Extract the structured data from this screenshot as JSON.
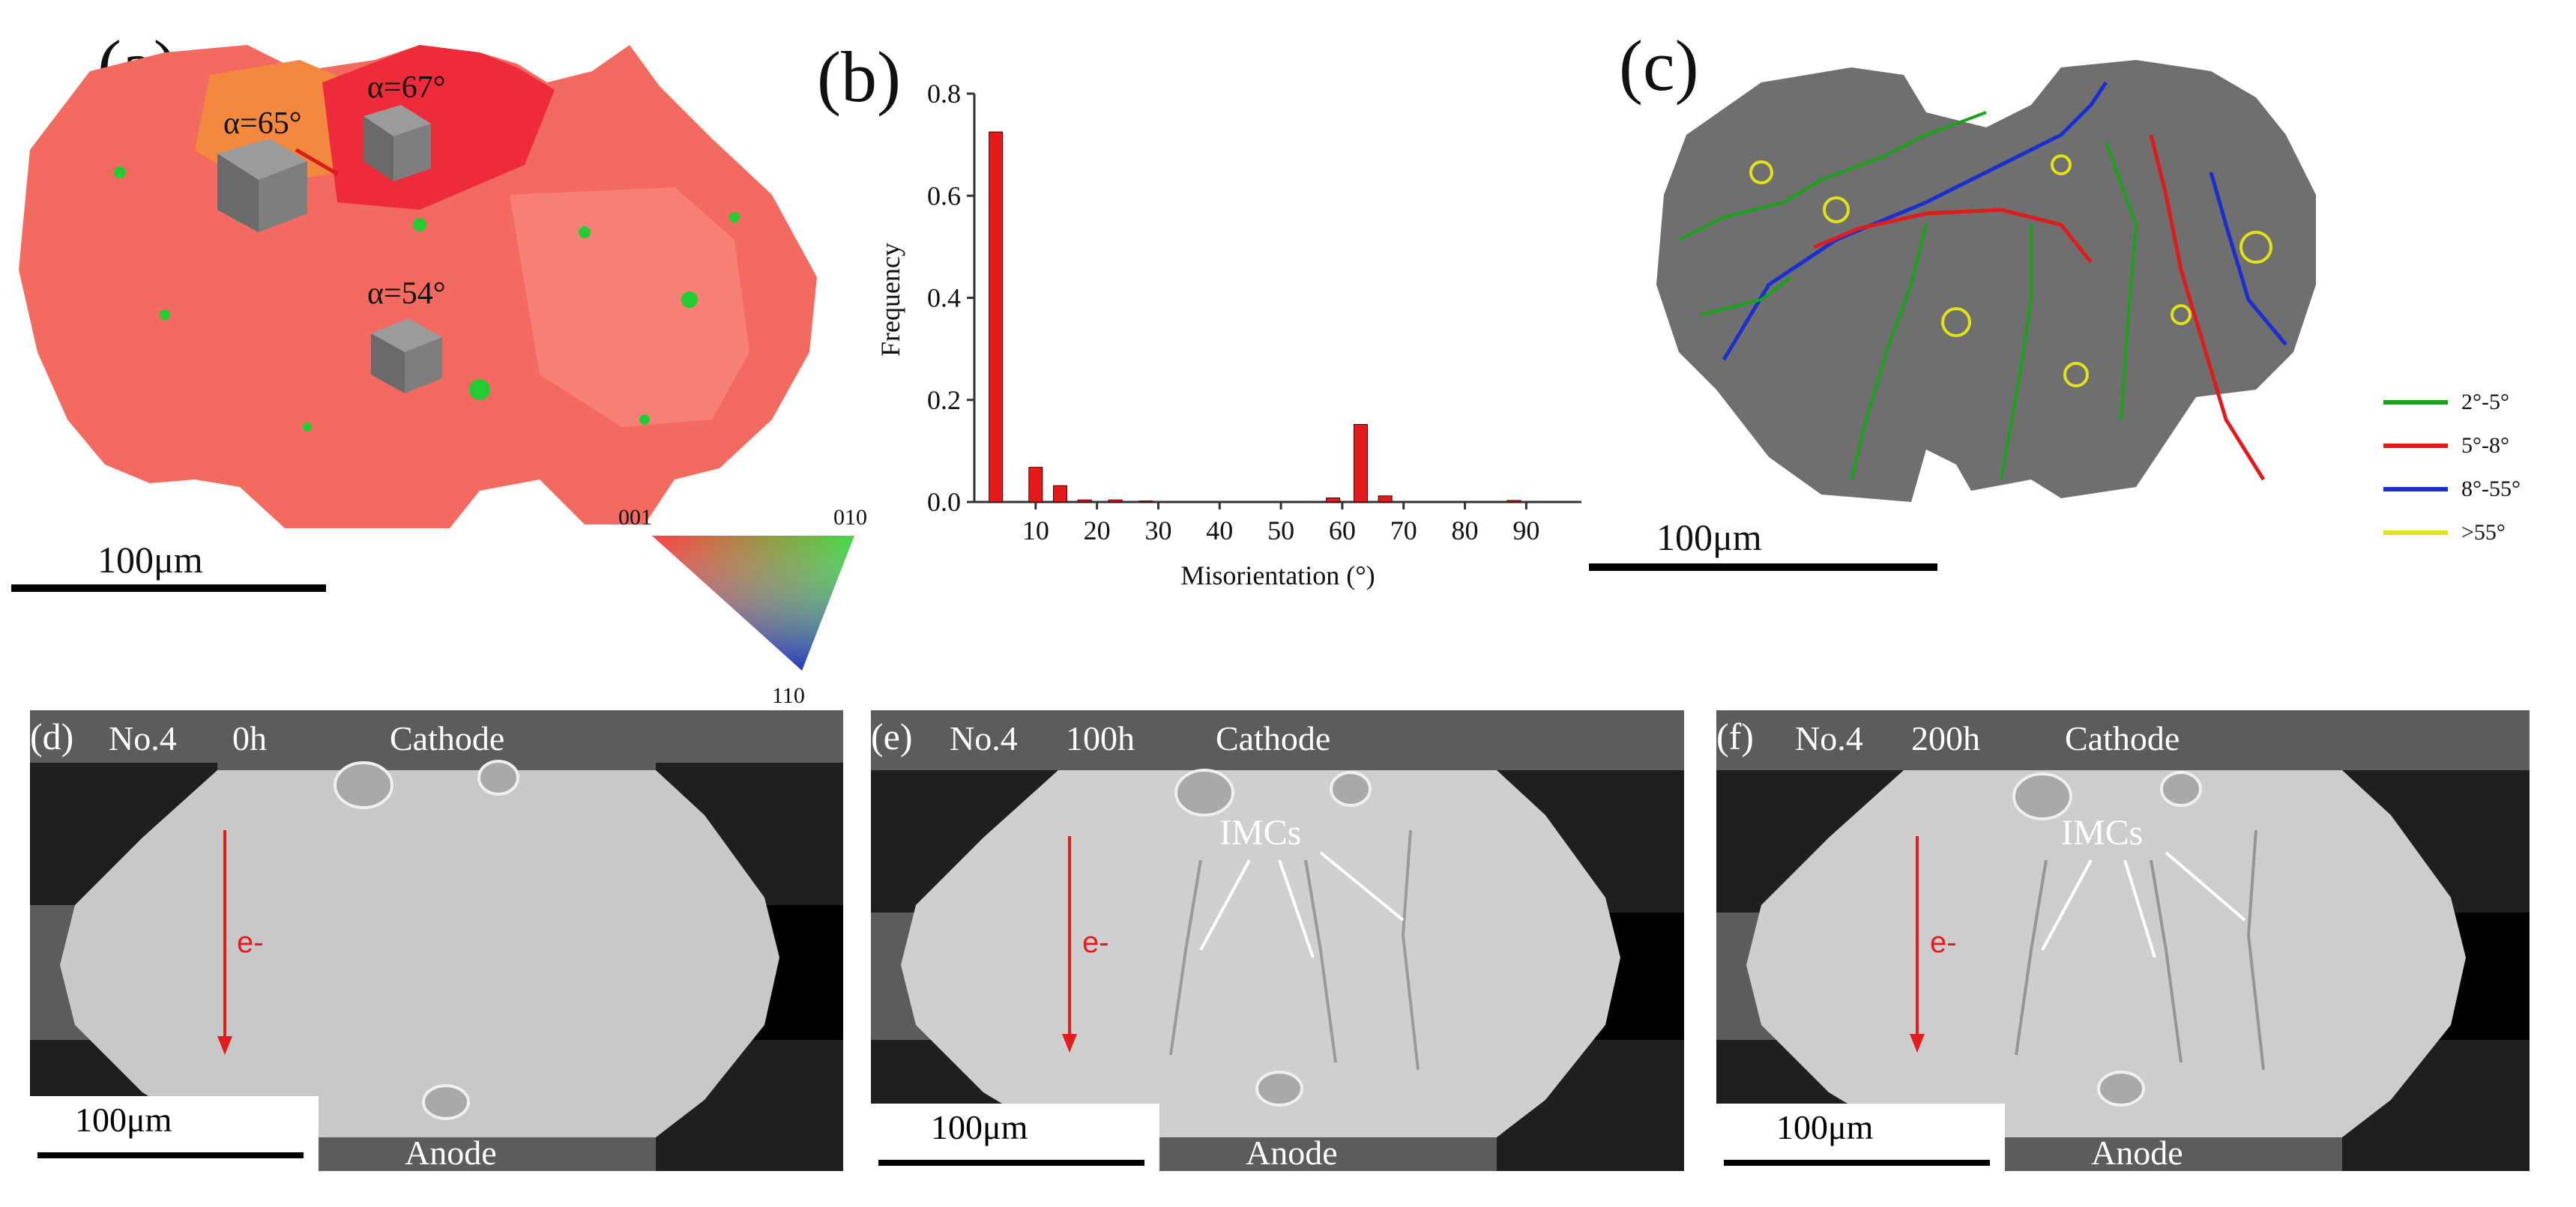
{
  "panels": {
    "a": {
      "label": "(a)",
      "angles": [
        "α=65°",
        "α=67°",
        "α=54°"
      ],
      "scale_bar": "100μm",
      "ipf_key": {
        "top_left": "001",
        "top_right": "010",
        "bottom": "110"
      }
    },
    "b": {
      "label": "(b)"
    },
    "c": {
      "label": "(c)",
      "scale_bar": "100μm",
      "legend": [
        {
          "label": "2°-5°",
          "color": "#19a319"
        },
        {
          "label": "5°-8°",
          "color": "#e01b1b"
        },
        {
          "label": "8°-55°",
          "color": "#1b2fd0"
        },
        {
          "label": ">55°",
          "color": "#e2e21a"
        }
      ]
    },
    "d": {
      "label": "(d)",
      "sample": "No.4",
      "time": "0h",
      "top": "Cathode",
      "bottom": "Anode",
      "electron": "e-",
      "scale_bar": "100μm"
    },
    "e": {
      "label": "(e)",
      "sample": "No.4",
      "time": "100h",
      "top": "Cathode",
      "bottom": "Anode",
      "electron": "e-",
      "imc": "IMCs",
      "scale_bar": "100μm"
    },
    "f": {
      "label": "(f)",
      "sample": "No.4",
      "time": "200h",
      "top": "Cathode",
      "bottom": "Anode",
      "electron": "e-",
      "imc": "IMCs",
      "scale_bar": "100μm"
    }
  },
  "chart_data": {
    "type": "bar",
    "title": "",
    "xlabel": "Misorientation (°)",
    "ylabel": "Frequency",
    "xlim": [
      0,
      99
    ],
    "ylim": [
      0,
      0.8
    ],
    "xticks": [
      10,
      20,
      30,
      40,
      50,
      60,
      70,
      80,
      90
    ],
    "yticks": [
      0.0,
      0.2,
      0.4,
      0.6,
      0.8
    ],
    "ytick_labels": [
      "0.0",
      "0.2",
      "0.4",
      "0.6",
      "0.8"
    ],
    "bin_centers": [
      3.5,
      10,
      14,
      18,
      23,
      28,
      58.5,
      63,
      67,
      88
    ],
    "values": [
      0.725,
      0.068,
      0.032,
      0.004,
      0.004,
      0.002,
      0.008,
      0.152,
      0.012,
      0.003
    ],
    "bar_color": "#e41a1a"
  }
}
